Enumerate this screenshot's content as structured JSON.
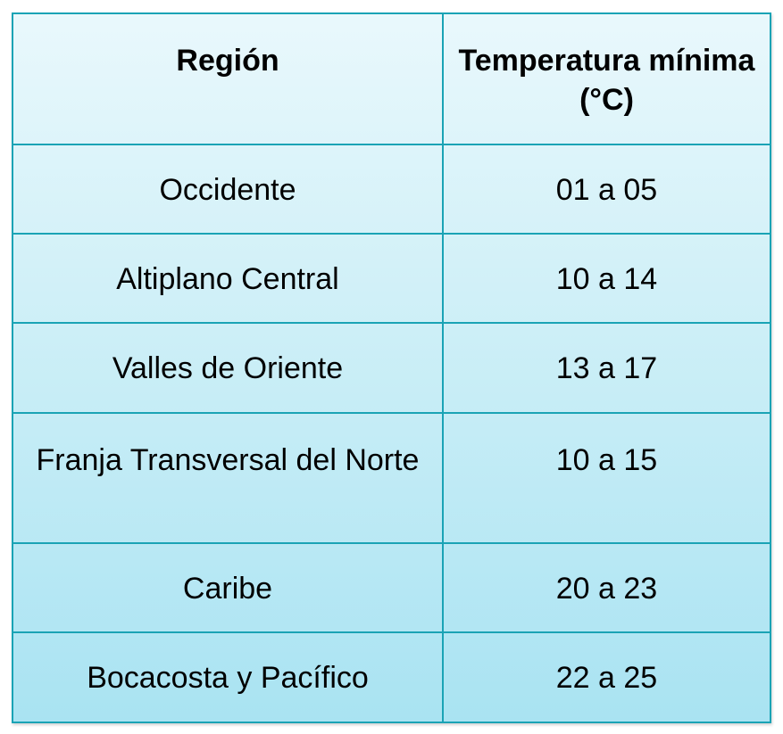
{
  "table": {
    "headers": [
      "Región",
      "Temperatura mínima (°C)"
    ],
    "rows": [
      {
        "region": "Occidente",
        "temp": "01 a 05"
      },
      {
        "region": "Altiplano Central",
        "temp": "10 a 14"
      },
      {
        "region": "Valles de Oriente",
        "temp": "13 a 17"
      },
      {
        "region": "Franja Transversal del Norte",
        "temp": "10 a 15"
      },
      {
        "region": "Caribe",
        "temp": "20 a 23"
      },
      {
        "region": "Bocacosta y Pacífico",
        "temp": "22 a 25"
      }
    ],
    "colors": {
      "border": "#1aa3b5",
      "fill_top": "#e9f8fc",
      "fill_bottom": "#a9e3f2"
    }
  }
}
